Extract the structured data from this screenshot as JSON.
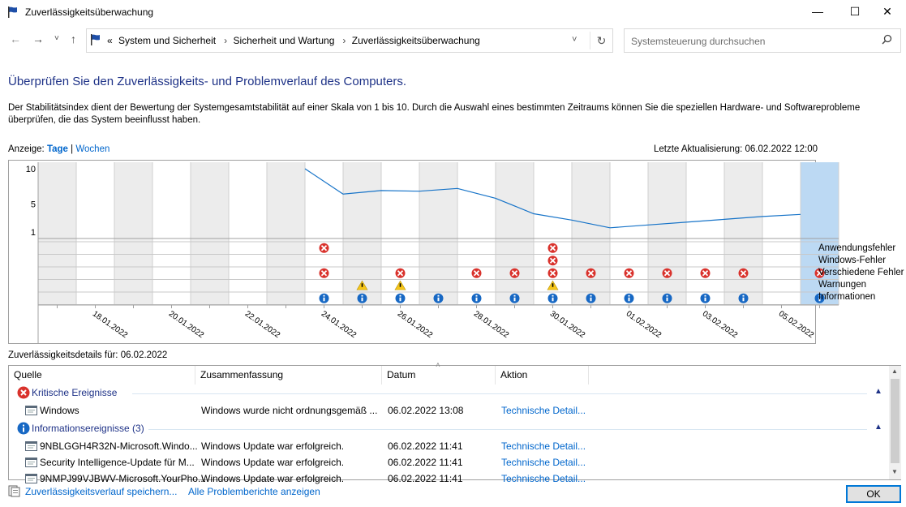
{
  "window": {
    "title": "Zuverlässigkeitsüberwachung",
    "minimize": "—",
    "maximize": "☐",
    "close": "✕"
  },
  "nav": {
    "back": "←",
    "forward": "→",
    "recent": "˅",
    "up": "↑",
    "breadcrumbs": [
      "System und Sicherheit",
      "Sicherheit und Wartung",
      "Zuverlässigkeitsüberwachung"
    ],
    "overflow": "«",
    "dropdown": "˅",
    "refresh": "↻",
    "search_placeholder": "Systemsteuerung durchsuchen"
  },
  "heading": "Überprüfen Sie den Zuverlässigkeits- und Problemverlauf des Computers.",
  "description": "Der Stabilitätsindex dient der Bewertung der Systemgesamtstabilität auf einer Skala von 1 bis 10. Durch die Auswahl eines bestimmten Zeitraums können Sie die speziellen Hardware- und Softwareprobleme überprüfen, die das System beeinflusst haben.",
  "view": {
    "label": "Anzeige:",
    "days": "Tage",
    "sep": "|",
    "weeks": "Wochen"
  },
  "last_update": "Letzte Aktualisierung: 06.02.2022 12:00",
  "chart_data": {
    "type": "line",
    "y_ticks": [
      "10",
      "5",
      "1"
    ],
    "ylim": [
      1,
      10
    ],
    "x": [
      "17.01.2022",
      "18.01.2022",
      "19.01.2022",
      "20.01.2022",
      "21.01.2022",
      "22.01.2022",
      "23.01.2022",
      "24.01.2022",
      "25.01.2022",
      "26.01.2022",
      "27.01.2022",
      "28.01.2022",
      "29.01.2022",
      "30.01.2022",
      "31.01.2022",
      "01.02.2022",
      "02.02.2022",
      "03.02.2022",
      "04.02.2022",
      "05.02.2022",
      "06.02.2022"
    ],
    "x_tick_labels": [
      "18.01.2022",
      "20.01.2022",
      "22.01.2022",
      "24.01.2022",
      "26.01.2022",
      "28.01.2022",
      "30.01.2022",
      "01.02.2022",
      "03.02.2022",
      "05.02.2022"
    ],
    "series": [
      {
        "values": [
          null,
          null,
          null,
          null,
          null,
          null,
          null,
          10.0,
          6.4,
          6.9,
          6.8,
          7.2,
          5.8,
          3.6,
          2.7,
          1.6,
          2.0,
          2.4,
          2.8,
          3.2,
          3.5
        ]
      }
    ],
    "selected": "06.02.2022",
    "event_rows": [
      "Anwendungsfehler",
      "Windows-Fehler",
      "Verschiedene Fehler",
      "Warnungen",
      "Informationen"
    ],
    "events": {
      "Anwendungsfehler": {
        "24.01.2022": "error",
        "30.01.2022": "error"
      },
      "Windows-Fehler": {
        "30.01.2022": "error"
      },
      "Verschiedene Fehler": {
        "24.01.2022": "error",
        "26.01.2022": "error",
        "28.01.2022": "error",
        "29.01.2022": "error",
        "30.01.2022": "error",
        "31.01.2022": "error",
        "01.02.2022": "error",
        "02.02.2022": "error",
        "03.02.2022": "error",
        "04.02.2022": "error",
        "06.02.2022": "error"
      },
      "Warnungen": {
        "25.01.2022": "warning",
        "26.01.2022": "warning",
        "30.01.2022": "warning"
      },
      "Informationen": {
        "24.01.2022": "info",
        "25.01.2022": "info",
        "26.01.2022": "info",
        "27.01.2022": "info",
        "28.01.2022": "info",
        "29.01.2022": "info",
        "30.01.2022": "info",
        "31.01.2022": "info",
        "01.02.2022": "info",
        "02.02.2022": "info",
        "03.02.2022": "info",
        "04.02.2022": "info",
        "06.02.2022": "info"
      }
    }
  },
  "legend": [
    "Anwendungsfehler",
    "Windows-Fehler",
    "Verschiedene Fehler",
    "Warnungen",
    "Informationen"
  ],
  "details": {
    "label": "Zuverlässigkeitsdetails für: 06.02.2022",
    "columns": [
      "Quelle",
      "Zusammenfassung",
      "Datum",
      "Aktion"
    ],
    "groups": [
      {
        "title": "Kritische Ereignisse",
        "icon": "error-icon",
        "rows": [
          {
            "source": "Windows",
            "summary": "Windows wurde nicht ordnungsgemäß ...",
            "date": "06.02.2022 13:08",
            "action": "Technische Detail..."
          }
        ]
      },
      {
        "title": "Informationsereignisse (3)",
        "icon": "info-icon",
        "rows": [
          {
            "source": "9NBLGGH4R32N-Microsoft.Windo...",
            "summary": "Windows Update war erfolgreich.",
            "date": "06.02.2022 11:41",
            "action": "Technische Detail..."
          },
          {
            "source": "Security Intelligence-Update für M...",
            "summary": "Windows Update war erfolgreich.",
            "date": "06.02.2022 11:41",
            "action": "Technische Detail..."
          },
          {
            "source": "9NMPJ99VJBWV-Microsoft.YourPho...",
            "summary": "Windows Update war erfolgreich.",
            "date": "06.02.2022 11:41",
            "action": "Technische Detail..."
          }
        ]
      }
    ]
  },
  "footer": {
    "save": "Zuverlässigkeitsverlauf speichern...",
    "all_reports": "Alle Problemberichte anzeigen",
    "ok": "OK"
  }
}
